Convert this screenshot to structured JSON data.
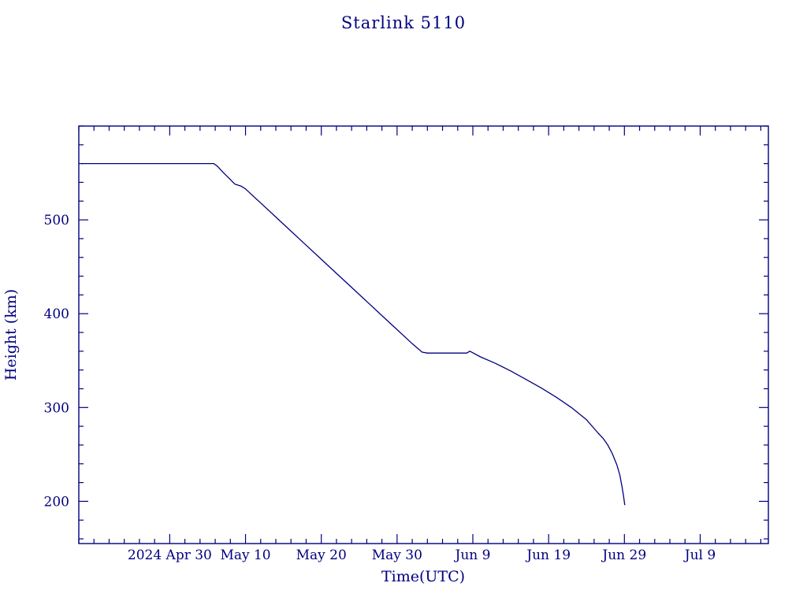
{
  "colors": {
    "line": "#000080",
    "axis": "#000080",
    "text": "#000080",
    "background": "#ffffff"
  },
  "chart_data": {
    "type": "line",
    "title": "Starlink 5110",
    "xlabel": "Time(UTC)",
    "ylabel": "Height (km)",
    "legend": "none",
    "grid": false,
    "x_axis": {
      "label": "Time(UTC)",
      "units": "days since 2024 Apr 30",
      "min": -12,
      "max": 79,
      "major_ticks": [
        0,
        10,
        20,
        30,
        40,
        50,
        60,
        70
      ],
      "major_tick_labels": [
        "2024 Apr 30",
        "May 10",
        "May 20",
        "May 30",
        "Jun 9",
        "Jun 19",
        "Jun 29",
        "Jul 9"
      ],
      "minor_step": 2
    },
    "y_axis": {
      "label": "Height (km)",
      "min": 155,
      "max": 600,
      "major_ticks": [
        200,
        300,
        400,
        500
      ],
      "major_tick_labels": [
        "200",
        "300",
        "400",
        "500"
      ],
      "minor_step": 20
    },
    "series": [
      {
        "name": "Starlink 5110 height",
        "points": [
          [
            -11.7,
            560
          ],
          [
            5.8,
            560
          ],
          [
            6.3,
            557
          ],
          [
            7.0,
            551
          ],
          [
            8.0,
            543
          ],
          [
            8.6,
            538
          ],
          [
            9.4,
            536
          ],
          [
            10.0,
            533
          ],
          [
            12,
            518
          ],
          [
            14,
            503
          ],
          [
            16,
            488
          ],
          [
            18,
            473
          ],
          [
            20,
            458
          ],
          [
            22,
            443
          ],
          [
            24,
            428
          ],
          [
            26,
            413
          ],
          [
            28,
            398
          ],
          [
            30,
            383
          ],
          [
            32,
            368
          ],
          [
            33.3,
            359
          ],
          [
            34,
            358
          ],
          [
            36,
            358
          ],
          [
            38,
            358
          ],
          [
            39.2,
            358
          ],
          [
            39.6,
            360
          ],
          [
            41,
            354
          ],
          [
            43,
            347
          ],
          [
            45,
            339
          ],
          [
            47,
            330
          ],
          [
            49,
            321
          ],
          [
            51,
            311
          ],
          [
            53,
            300
          ],
          [
            55,
            287
          ],
          [
            56.5,
            273
          ],
          [
            57.2,
            267
          ],
          [
            57.8,
            260
          ],
          [
            58.4,
            251
          ],
          [
            59.0,
            239
          ],
          [
            59.4,
            228
          ],
          [
            59.7,
            215
          ],
          [
            59.9,
            205
          ],
          [
            60.05,
            196
          ]
        ]
      }
    ]
  }
}
